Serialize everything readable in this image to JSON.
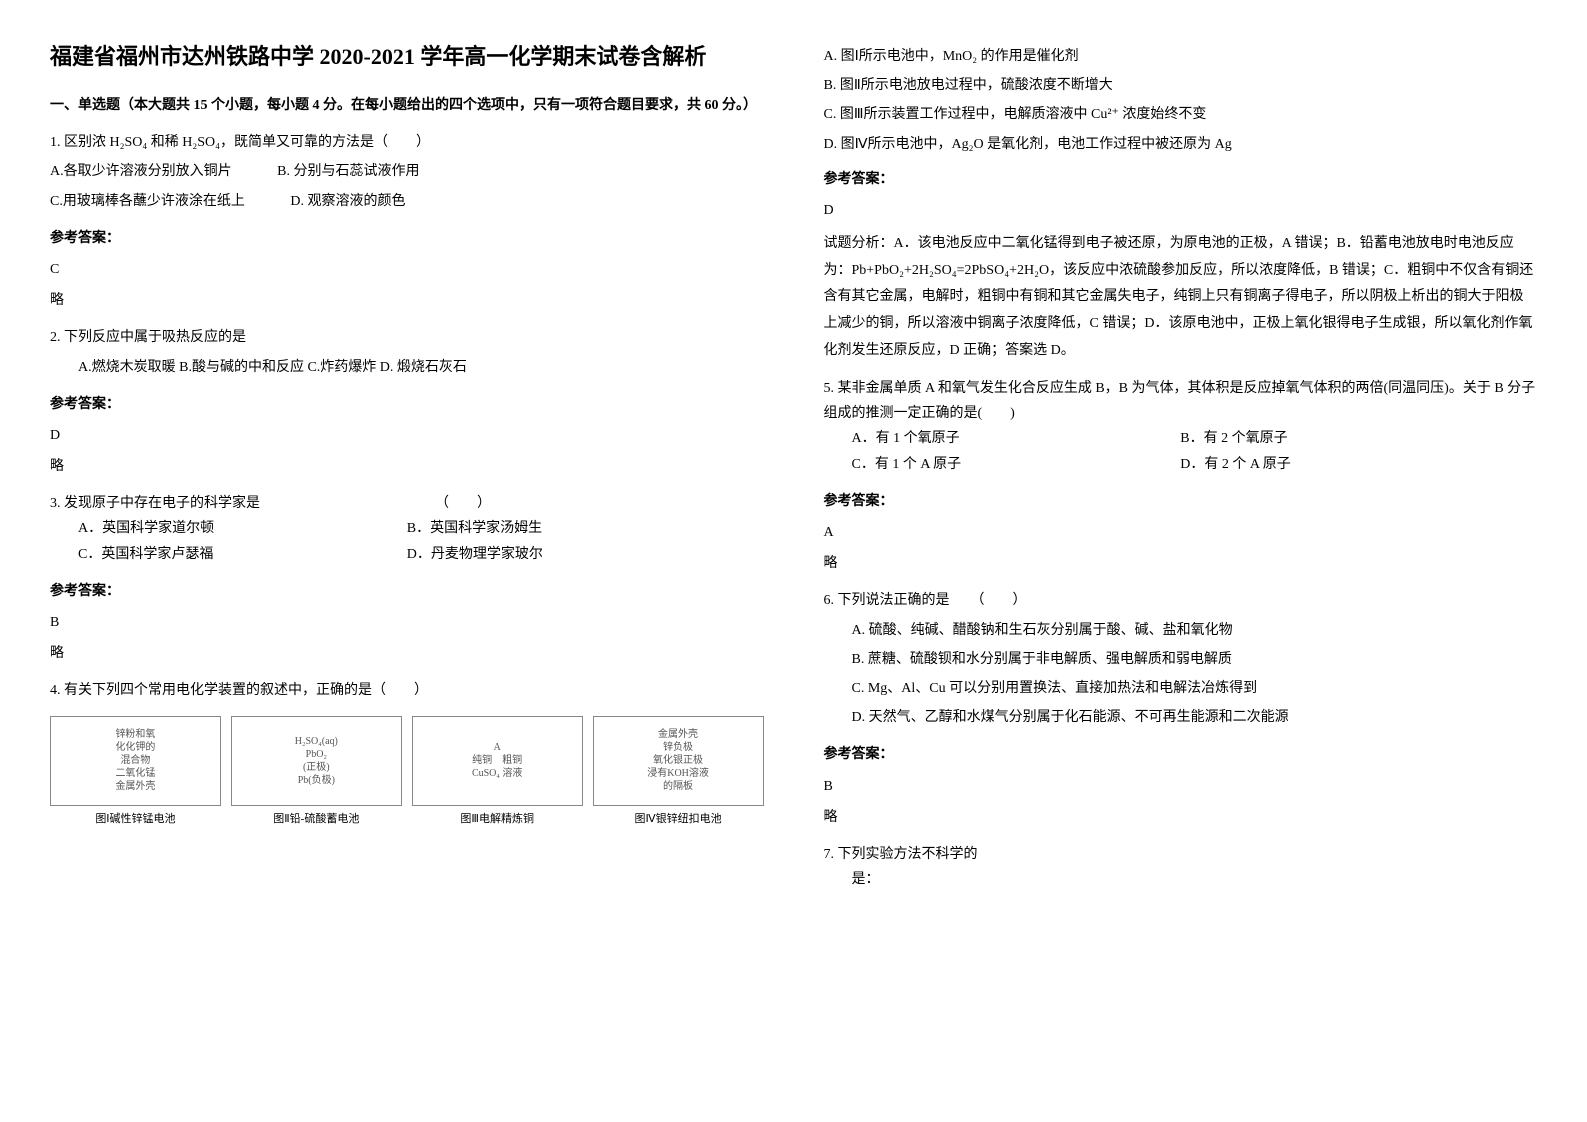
{
  "title": "福建省福州市达州铁路中学 2020-2021 学年高一化学期末试卷含解析",
  "section1_title": "一、单选题（本大题共 15 个小题，每小题 4 分。在每小题给出的四个选项中，只有一项符合题目要求，共 60 分。）",
  "q1": {
    "stem": "1. 区别浓 H₂SO₄ 和稀 H₂SO₄，既简单又可靠的方法是（　　）",
    "optA": "A.各取少许溶液分别放入铜片",
    "optB": "B. 分别与石蕊试液作用",
    "optC": "C.用玻璃棒各蘸少许液涂在纸上",
    "optD": "D. 观察溶液的颜色",
    "answer_label": "参考答案：",
    "answer": "C",
    "brief": "略"
  },
  "q2": {
    "stem": "2. 下列反应中属于吸热反应的是",
    "opts": "A.燃烧木炭取暖  B.酸与碱的中和反应  C.炸药爆炸   D. 煅烧石灰石",
    "answer_label": "参考答案：",
    "answer": "D",
    "brief": "略"
  },
  "q3": {
    "stem": "3. 发现原子中存在电子的科学家是　　　　　　　　　　　　　（　　）",
    "optA": "A．英国科学家道尔顿",
    "optB": "B．英国科学家汤姆生",
    "optC": "C．英国科学家卢瑟福",
    "optD": "D．丹麦物理学家玻尔",
    "answer_label": "参考答案：",
    "answer": "B",
    "brief": "略"
  },
  "q4": {
    "stem": "4. 有关下列四个常用电化学装置的叙述中，正确的是（　　）",
    "diagrams": {
      "d1": {
        "box": "锌粉和氧\n化化钾的\n混合物\n二氧化锰\n金属外壳",
        "caption": "图Ⅰ碱性锌锰电池"
      },
      "d2": {
        "box": "H₂SO₄(aq)\nPbO₂\n(正极)\nPb(负极)",
        "caption": "图Ⅱ铅-硫酸蓄电池"
      },
      "d3": {
        "box": "A\n纯铜　粗铜\nCuSO₄ 溶液",
        "caption": "图Ⅲ电解精炼铜"
      },
      "d4": {
        "box": "金属外壳\n锌负极\n氧化银正极\n浸有KOH溶液\n的隔板",
        "caption": "图Ⅳ银锌纽扣电池"
      }
    },
    "optA": "A. 图Ⅰ所示电池中，MnO₂ 的作用是催化剂",
    "optB": "B. 图Ⅱ所示电池放电过程中，硫酸浓度不断增大",
    "optC": "C. 图Ⅲ所示装置工作过程中，电解质溶液中 Cu²⁺ 浓度始终不变",
    "optD": "D. 图Ⅳ所示电池中，Ag₂O 是氧化剂，电池工作过程中被还原为 Ag",
    "answer_label": "参考答案：",
    "answer": "D",
    "explanation": "试题分析：A．该电池反应中二氧化锰得到电子被还原，为原电池的正极，A 错误；B．铅蓄电池放电时电池反应为：Pb+PbO₂+2H₂SO₄=2PbSO₄+2H₂O，该反应中浓硫酸参加反应，所以浓度降低，B 错误；C．粗铜中不仅含有铜还含有其它金属，电解时，粗铜中有铜和其它金属失电子，纯铜上只有铜离子得电子，所以阴极上析出的铜大于阳极上减少的铜，所以溶液中铜离子浓度降低，C 错误；D．该原电池中，正极上氧化银得电子生成银，所以氧化剂作氧化剂发生还原反应，D 正确；答案选 D。"
  },
  "q5": {
    "stem": "5. 某非金属单质 A 和氧气发生化合反应生成 B，B 为气体，其体积是反应掉氧气体积的两倍(同温同压)。关于 B 分子组成的推测一定正确的是(　　)",
    "optA": "A．有 1 个氧原子",
    "optB": "B．有 2 个氧原子",
    "optC": "C．有 1 个 A 原子",
    "optD": "D．有 2 个 A 原子",
    "answer_label": "参考答案：",
    "answer": "A",
    "brief": "略"
  },
  "q6": {
    "stem": "6. 下列说法正确的是　　（　　）",
    "optA": "A. 硫酸、纯碱、醋酸钠和生石灰分别属于酸、碱、盐和氧化物",
    "optB": "B. 蔗糖、硫酸钡和水分别属于非电解质、强电解质和弱电解质",
    "optC": "C. Mg、Al、Cu 可以分别用置换法、直接加热法和电解法冶炼得到",
    "optD": "D. 天然气、乙醇和水煤气分别属于化石能源、不可再生能源和二次能源",
    "answer_label": "参考答案：",
    "answer": "B",
    "brief": "略"
  },
  "q7": {
    "stem": "7. 下列实验方法不科学的",
    "stem2": "是："
  }
}
